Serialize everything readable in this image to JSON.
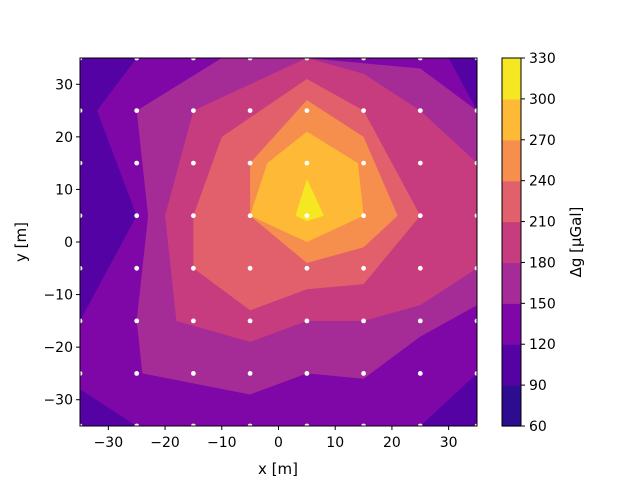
{
  "chart_data": {
    "type": "contour",
    "xlabel": "x [m]",
    "ylabel": "y [m]",
    "xlim": [
      -35,
      35
    ],
    "ylim": [
      -35,
      35
    ],
    "xticks": [
      -30,
      -20,
      -10,
      0,
      10,
      20,
      30
    ],
    "yticks": [
      -30,
      -20,
      -10,
      0,
      10,
      20,
      30
    ],
    "xtick_labels": [
      "−30",
      "−20",
      "−10",
      "0",
      "10",
      "20",
      "30"
    ],
    "ytick_labels": [
      "−30",
      "−20",
      "−10",
      "0",
      "10",
      "20",
      "30"
    ],
    "colorbar": {
      "label": "Δg [µGal]",
      "levels": [
        60,
        90,
        120,
        150,
        180,
        210,
        240,
        270,
        300,
        330
      ],
      "level_labels": [
        "60",
        "90",
        "120",
        "150",
        "180",
        "210",
        "240",
        "270",
        "300",
        "330"
      ],
      "colors": [
        "#2d0c90",
        "#5502a4",
        "#7f07a8",
        "#a52c97",
        "#c73c7e",
        "#e2606b",
        "#f68e4d",
        "#feb937",
        "#f5e823"
      ]
    },
    "background_color": "#5502a4",
    "station_color": "#ffffff",
    "stations_x": [
      -35,
      -25,
      -15,
      -5,
      5,
      15,
      25,
      35
    ],
    "stations_y": [
      -35,
      -25,
      -15,
      -5,
      5,
      15,
      25,
      35
    ],
    "regions": [
      {
        "level": 120,
        "color": "#7f07a8",
        "points": [
          [
            -25,
            35
          ],
          [
            -32,
            25
          ],
          [
            -25,
            5
          ],
          [
            -35,
            -15
          ],
          [
            -35,
            -28
          ],
          [
            -25,
            -35
          ],
          [
            15,
            -35
          ],
          [
            25,
            -35
          ],
          [
            35,
            -25
          ],
          [
            35,
            -10
          ],
          [
            35,
            25
          ],
          [
            30,
            35
          ],
          [
            -15,
            35
          ]
        ]
      },
      {
        "level": 150,
        "color": "#a52c97",
        "points": [
          [
            -10,
            35
          ],
          [
            -25,
            25
          ],
          [
            -23,
            5
          ],
          [
            -25,
            -15
          ],
          [
            -24,
            -25
          ],
          [
            -5,
            -29
          ],
          [
            5,
            -25
          ],
          [
            15,
            -26
          ],
          [
            25,
            -18
          ],
          [
            35,
            -12
          ],
          [
            35,
            5
          ],
          [
            35,
            25
          ],
          [
            25,
            33
          ],
          [
            5,
            35
          ]
        ]
      },
      {
        "level": 180,
        "color": "#c73c7e",
        "points": [
          [
            5,
            35
          ],
          [
            -15,
            25
          ],
          [
            -20,
            5
          ],
          [
            -18,
            -15
          ],
          [
            -5,
            -19
          ],
          [
            5,
            -15
          ],
          [
            15,
            -15
          ],
          [
            25,
            -12
          ],
          [
            35,
            -5
          ],
          [
            35,
            15
          ],
          [
            25,
            25
          ],
          [
            15,
            32
          ]
        ]
      },
      {
        "level": 210,
        "color": "#e2606b",
        "points": [
          [
            5,
            31
          ],
          [
            -10,
            20
          ],
          [
            -15,
            5
          ],
          [
            -15,
            -5
          ],
          [
            -5,
            -13
          ],
          [
            5,
            -9
          ],
          [
            15,
            -8
          ],
          [
            25,
            5
          ],
          [
            15,
            25
          ]
        ]
      },
      {
        "level": 240,
        "color": "#f68e4d",
        "points": [
          [
            5,
            27
          ],
          [
            -5,
            15
          ],
          [
            -5,
            5
          ],
          [
            5,
            -4
          ],
          [
            15,
            -1
          ],
          [
            21,
            5
          ],
          [
            15,
            20
          ]
        ]
      },
      {
        "level": 270,
        "color": "#feb937",
        "points": [
          [
            5,
            21
          ],
          [
            -2,
            15
          ],
          [
            -5,
            5
          ],
          [
            5,
            0
          ],
          [
            15,
            5
          ],
          [
            14,
            15
          ]
        ]
      },
      {
        "level": 300,
        "color": "#f5e823",
        "points": [
          [
            5,
            12
          ],
          [
            3,
            5
          ],
          [
            5,
            4
          ],
          [
            8,
            5
          ]
        ]
      }
    ]
  }
}
